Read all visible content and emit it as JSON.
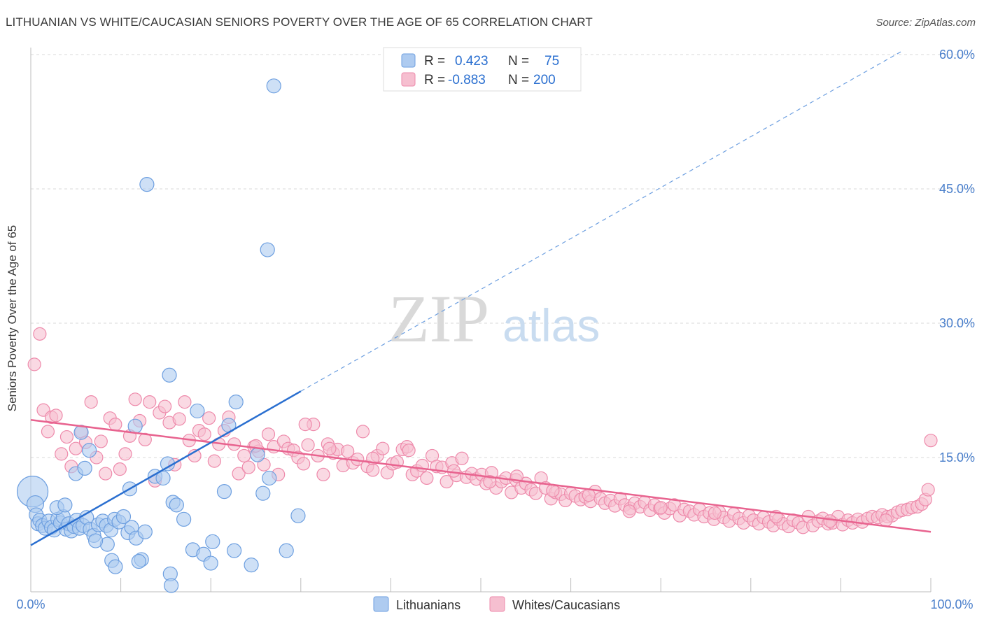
{
  "title": "LITHUANIAN VS WHITE/CAUCASIAN SENIORS POVERTY OVER THE AGE OF 65 CORRELATION CHART",
  "source": "Source: ZipAtlas.com",
  "watermark": {
    "zip": "ZIP",
    "atlas": "atlas"
  },
  "colors": {
    "blue_fill": "#aecbf0",
    "blue_stroke": "#6d9fe0",
    "blue_line": "#2a6fd0",
    "pink_fill": "#f6bfd0",
    "pink_stroke": "#ee8aab",
    "pink_line": "#e8638f",
    "tick_text": "#4a7fcb",
    "grid": "#d8d8d8"
  },
  "legend": {
    "rows": [
      {
        "series": "Lithuanians",
        "r_label": "R =",
        "r_value": "0.423",
        "n_label": "N =",
        "n_value": "75"
      },
      {
        "series": "Whites/Caucasians",
        "r_label": "R =",
        "r_value": "-0.883",
        "n_label": "N =",
        "n_value": "200"
      }
    ]
  },
  "chart_data": {
    "type": "scatter",
    "title": "LITHUANIAN VS WHITE/CAUCASIAN SENIORS POVERTY OVER THE AGE OF 65 CORRELATION CHART",
    "xlabel": "",
    "ylabel": "Seniors Poverty Over the Age of 65",
    "xlim": [
      0,
      100
    ],
    "ylim": [
      0,
      60
    ],
    "x_tick_labels": [
      "0.0%",
      "100.0%"
    ],
    "y_ticks": [
      15,
      30,
      45,
      60
    ],
    "y_tick_labels": [
      "15.0%",
      "30.0%",
      "45.0%",
      "60.0%"
    ],
    "grid": true,
    "series": [
      {
        "name": "Lithuanians",
        "trend": {
          "x0": 0,
          "y0": 5.2,
          "x1": 30,
          "y1": 22.4,
          "dashed_to_x": 97,
          "dashed_to_y": 60.5
        },
        "points": [
          [
            0.2,
            11.2,
            22
          ],
          [
            0.5,
            9.8,
            12
          ],
          [
            0.6,
            8.6,
            10
          ],
          [
            0.8,
            7.6,
            10
          ],
          [
            1.0,
            8.0,
            10
          ],
          [
            1.3,
            7.4,
            10
          ],
          [
            1.6,
            7.1,
            10
          ],
          [
            2.0,
            7.9,
            10
          ],
          [
            2.3,
            7.2,
            10
          ],
          [
            2.6,
            6.9,
            10
          ],
          [
            3.0,
            8.1,
            10
          ],
          [
            3.3,
            7.7,
            10
          ],
          [
            3.6,
            8.4,
            10
          ],
          [
            3.9,
            7.0,
            10
          ],
          [
            4.2,
            7.6,
            10
          ],
          [
            4.5,
            6.8,
            10
          ],
          [
            4.8,
            7.3,
            10
          ],
          [
            5.1,
            8.0,
            10
          ],
          [
            5.4,
            7.1,
            10
          ],
          [
            5.8,
            7.4,
            10
          ],
          [
            6.2,
            8.3,
            10
          ],
          [
            6.6,
            7.0,
            10
          ],
          [
            7.0,
            6.3,
            10
          ],
          [
            7.5,
            7.5,
            10
          ],
          [
            8.0,
            7.9,
            10
          ],
          [
            8.4,
            7.4,
            10
          ],
          [
            8.9,
            6.9,
            10
          ],
          [
            9.3,
            8.1,
            10
          ],
          [
            9.8,
            7.8,
            10
          ],
          [
            10.3,
            8.4,
            10
          ],
          [
            10.8,
            6.6,
            10
          ],
          [
            11.2,
            7.2,
            10
          ],
          [
            11.7,
            6.0,
            10
          ],
          [
            2.9,
            9.4,
            10
          ],
          [
            3.8,
            9.7,
            10
          ],
          [
            5.0,
            13.2,
            10
          ],
          [
            5.6,
            17.8,
            10
          ],
          [
            6.0,
            13.8,
            10
          ],
          [
            6.5,
            15.8,
            10
          ],
          [
            8.5,
            5.3,
            10
          ],
          [
            9.0,
            3.5,
            10
          ],
          [
            7.2,
            5.7,
            10
          ],
          [
            11.0,
            11.5,
            10
          ],
          [
            11.6,
            18.5,
            10
          ],
          [
            12.3,
            3.6,
            10
          ],
          [
            12.0,
            3.4,
            10
          ],
          [
            12.7,
            6.7,
            10
          ],
          [
            13.8,
            12.9,
            10
          ],
          [
            14.7,
            12.7,
            10
          ],
          [
            15.2,
            14.3,
            10
          ],
          [
            15.5,
            2.0,
            10
          ],
          [
            15.8,
            10.0,
            10
          ],
          [
            16.2,
            9.7,
            10
          ],
          [
            17.0,
            8.1,
            10
          ],
          [
            18.0,
            4.7,
            10
          ],
          [
            18.5,
            20.2,
            10
          ],
          [
            19.2,
            4.2,
            10
          ],
          [
            20.0,
            3.2,
            10
          ],
          [
            20.2,
            5.6,
            10
          ],
          [
            15.4,
            24.2,
            10
          ],
          [
            12.9,
            45.5,
            10
          ],
          [
            27.0,
            56.5,
            10
          ],
          [
            26.3,
            38.2,
            10
          ],
          [
            22.8,
            21.2,
            10
          ],
          [
            22.0,
            18.6,
            10
          ],
          [
            26.5,
            12.7,
            10
          ],
          [
            29.7,
            8.5,
            10
          ],
          [
            22.6,
            4.6,
            10
          ],
          [
            9.4,
            2.8,
            10
          ],
          [
            15.6,
            0.7,
            10
          ],
          [
            24.5,
            3.0,
            10
          ],
          [
            25.2,
            15.3,
            10
          ],
          [
            25.8,
            11.0,
            10
          ],
          [
            28.4,
            4.6,
            10
          ],
          [
            21.5,
            11.2,
            10
          ]
        ]
      },
      {
        "name": "Whites/Caucasians",
        "trend": {
          "x0": 0,
          "y0": 19.2,
          "x1": 100,
          "y1": 6.7
        },
        "points": [
          [
            0.4,
            25.4
          ],
          [
            1.0,
            28.8
          ],
          [
            1.4,
            20.3
          ],
          [
            1.9,
            17.9
          ],
          [
            2.3,
            19.5
          ],
          [
            2.8,
            19.7
          ],
          [
            3.4,
            15.4
          ],
          [
            4.0,
            17.3
          ],
          [
            4.5,
            14.0
          ],
          [
            5.0,
            16.0
          ],
          [
            5.6,
            17.9
          ],
          [
            6.1,
            16.7
          ],
          [
            6.7,
            21.2
          ],
          [
            7.3,
            15.0
          ],
          [
            7.8,
            16.8
          ],
          [
            8.3,
            13.2
          ],
          [
            8.8,
            19.4
          ],
          [
            9.4,
            18.7
          ],
          [
            9.9,
            13.7
          ],
          [
            10.5,
            15.4
          ],
          [
            11.0,
            17.4
          ],
          [
            11.6,
            21.5
          ],
          [
            12.1,
            19.1
          ],
          [
            12.7,
            17.0
          ],
          [
            13.2,
            21.2
          ],
          [
            13.8,
            12.4
          ],
          [
            14.3,
            20.0
          ],
          [
            14.9,
            20.7
          ],
          [
            15.4,
            18.9
          ],
          [
            16.0,
            14.2
          ],
          [
            16.5,
            19.3
          ],
          [
            17.1,
            21.2
          ],
          [
            17.6,
            16.9
          ],
          [
            18.2,
            15.2
          ],
          [
            18.7,
            18.0
          ],
          [
            19.3,
            17.6
          ],
          [
            19.8,
            19.4
          ],
          [
            20.4,
            14.6
          ],
          [
            20.9,
            16.5
          ],
          [
            21.5,
            18.0
          ],
          [
            22.0,
            19.5
          ],
          [
            22.6,
            16.5
          ],
          [
            23.1,
            13.2
          ],
          [
            23.7,
            15.2
          ],
          [
            24.2,
            13.9
          ],
          [
            24.8,
            16.2
          ],
          [
            25.3,
            15.7
          ],
          [
            25.9,
            14.2
          ],
          [
            26.4,
            17.6
          ],
          [
            27.0,
            16.2
          ],
          [
            27.5,
            13.1
          ],
          [
            28.1,
            16.8
          ],
          [
            28.6,
            16.0
          ],
          [
            29.2,
            15.8
          ],
          [
            29.7,
            15.0
          ],
          [
            30.3,
            14.3
          ],
          [
            30.8,
            16.4
          ],
          [
            31.4,
            18.7
          ],
          [
            31.9,
            15.2
          ],
          [
            32.5,
            13.1
          ],
          [
            33.0,
            16.5
          ],
          [
            33.6,
            15.5
          ],
          [
            34.1,
            15.9
          ],
          [
            34.7,
            14.1
          ],
          [
            35.2,
            15.7
          ],
          [
            35.8,
            14.4
          ],
          [
            36.3,
            14.8
          ],
          [
            36.9,
            17.9
          ],
          [
            37.4,
            14.0
          ],
          [
            38.0,
            13.6
          ],
          [
            38.5,
            15.2
          ],
          [
            39.1,
            16.0
          ],
          [
            39.6,
            13.3
          ],
          [
            40.2,
            14.3
          ],
          [
            40.7,
            14.5
          ],
          [
            41.3,
            15.9
          ],
          [
            41.8,
            16.2
          ],
          [
            42.4,
            13.1
          ],
          [
            42.9,
            13.5
          ],
          [
            43.5,
            14.1
          ],
          [
            44.0,
            12.7
          ],
          [
            44.6,
            15.2
          ],
          [
            45.1,
            14.0
          ],
          [
            45.7,
            13.9
          ],
          [
            46.2,
            12.3
          ],
          [
            46.8,
            14.4
          ],
          [
            47.3,
            13.0
          ],
          [
            47.9,
            14.9
          ],
          [
            48.4,
            12.8
          ],
          [
            49.0,
            13.2
          ],
          [
            49.5,
            12.6
          ],
          [
            50.1,
            13.1
          ],
          [
            50.6,
            12.1
          ],
          [
            51.2,
            13.3
          ],
          [
            51.7,
            11.6
          ],
          [
            52.3,
            12.3
          ],
          [
            52.8,
            12.7
          ],
          [
            53.4,
            11.1
          ],
          [
            53.9,
            12.5
          ],
          [
            54.5,
            11.6
          ],
          [
            55.0,
            12.1
          ],
          [
            55.6,
            11.4
          ],
          [
            56.1,
            11.0
          ],
          [
            56.7,
            12.7
          ],
          [
            57.2,
            11.6
          ],
          [
            57.8,
            10.4
          ],
          [
            58.3,
            11.1
          ],
          [
            58.9,
            10.9
          ],
          [
            59.4,
            10.2
          ],
          [
            60.0,
            11.0
          ],
          [
            60.5,
            10.7
          ],
          [
            61.1,
            10.3
          ],
          [
            61.6,
            10.6
          ],
          [
            62.2,
            10.1
          ],
          [
            62.7,
            11.2
          ],
          [
            63.3,
            10.4
          ],
          [
            63.8,
            9.9
          ],
          [
            64.4,
            10.2
          ],
          [
            64.9,
            9.6
          ],
          [
            65.5,
            10.4
          ],
          [
            66.0,
            9.7
          ],
          [
            66.6,
            9.3
          ],
          [
            67.1,
            9.9
          ],
          [
            67.7,
            9.5
          ],
          [
            68.2,
            10.0
          ],
          [
            68.8,
            9.1
          ],
          [
            69.3,
            9.7
          ],
          [
            69.9,
            9.3
          ],
          [
            70.4,
            8.8
          ],
          [
            71.0,
            9.3
          ],
          [
            71.5,
            9.7
          ],
          [
            72.1,
            8.5
          ],
          [
            72.6,
            9.2
          ],
          [
            73.2,
            9.0
          ],
          [
            73.7,
            8.6
          ],
          [
            74.3,
            9.2
          ],
          [
            74.8,
            8.4
          ],
          [
            75.4,
            8.8
          ],
          [
            75.9,
            8.1
          ],
          [
            76.5,
            8.9
          ],
          [
            77.0,
            8.3
          ],
          [
            77.6,
            7.9
          ],
          [
            78.1,
            8.7
          ],
          [
            78.7,
            8.2
          ],
          [
            79.2,
            7.7
          ],
          [
            79.8,
            8.5
          ],
          [
            80.3,
            8.0
          ],
          [
            80.9,
            7.6
          ],
          [
            81.4,
            8.3
          ],
          [
            82.0,
            7.8
          ],
          [
            82.5,
            7.4
          ],
          [
            83.1,
            8.1
          ],
          [
            83.6,
            7.6
          ],
          [
            84.2,
            7.3
          ],
          [
            84.7,
            8.0
          ],
          [
            85.3,
            7.7
          ],
          [
            85.8,
            7.2
          ],
          [
            86.4,
            8.4
          ],
          [
            86.9,
            7.4
          ],
          [
            87.5,
            7.9
          ],
          [
            88.0,
            8.2
          ],
          [
            88.6,
            7.6
          ],
          [
            89.1,
            7.7
          ],
          [
            89.7,
            8.4
          ],
          [
            90.2,
            7.5
          ],
          [
            90.8,
            8.0
          ],
          [
            91.3,
            7.7
          ],
          [
            91.9,
            8.1
          ],
          [
            92.4,
            7.8
          ],
          [
            93.0,
            8.2
          ],
          [
            93.5,
            8.4
          ],
          [
            94.1,
            8.3
          ],
          [
            94.6,
            8.6
          ],
          [
            95.2,
            8.4
          ],
          [
            95.7,
            8.5
          ],
          [
            96.3,
            8.9
          ],
          [
            96.8,
            9.1
          ],
          [
            97.4,
            9.2
          ],
          [
            97.9,
            9.4
          ],
          [
            98.5,
            9.5
          ],
          [
            99.0,
            9.8
          ],
          [
            99.4,
            10.3
          ],
          [
            99.7,
            11.4
          ],
          [
            100.0,
            16.9
          ],
          [
            30.5,
            18.7
          ],
          [
            38.0,
            14.9
          ],
          [
            47.0,
            13.5
          ],
          [
            54.0,
            12.9
          ],
          [
            62.0,
            10.8
          ],
          [
            70.0,
            9.4
          ],
          [
            76.0,
            8.8
          ],
          [
            82.8,
            8.4
          ],
          [
            88.8,
            7.9
          ],
          [
            95.0,
            8.0
          ],
          [
            25.0,
            16.3
          ],
          [
            33.2,
            16.0
          ],
          [
            42.0,
            15.8
          ],
          [
            51.0,
            12.3
          ],
          [
            58.0,
            11.3
          ],
          [
            66.5,
            9.0
          ]
        ]
      }
    ]
  }
}
